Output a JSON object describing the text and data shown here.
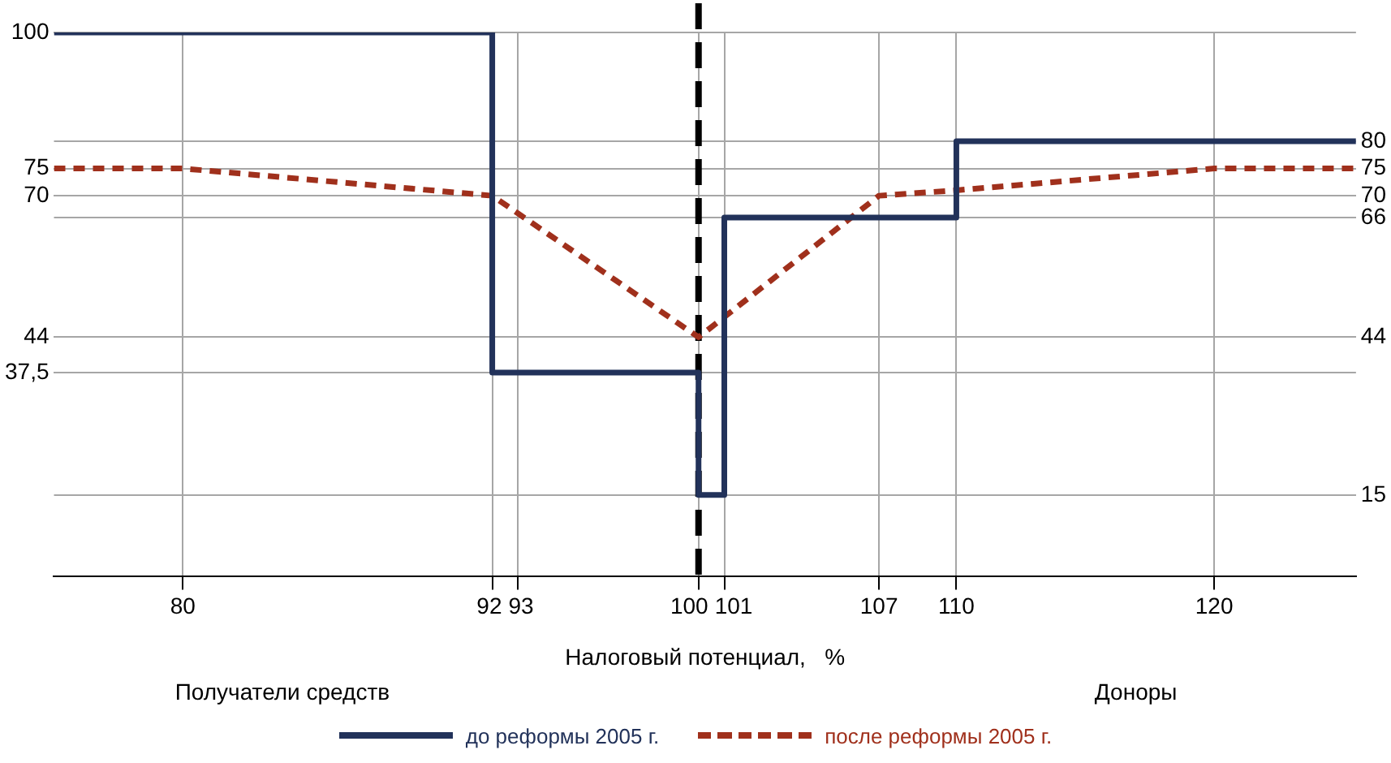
{
  "chart_data": {
    "type": "line",
    "xlabel": "Налоговый потенциал,   %",
    "xlim": [
      75,
      125.5
    ],
    "xticks": [
      80,
      92,
      93,
      100,
      101,
      107,
      110,
      120
    ],
    "ylim": [
      0,
      100
    ],
    "yticks": [
      100,
      75,
      70,
      44,
      {
        "value": 37.5,
        "label": "37,5"
      }
    ],
    "y2lim": [
      0,
      100
    ],
    "y2ticks": [
      80,
      75,
      70,
      66,
      44,
      15
    ],
    "grid": true,
    "legend": "bottom",
    "series": [
      {
        "name": "до реформы 2005 г.",
        "color": "#22325a",
        "x": [
          75,
          92,
          92,
          100,
          100,
          101,
          101,
          110,
          110,
          125.5
        ],
        "values": [
          100,
          100,
          37.5,
          37.5,
          15,
          15,
          66,
          66,
          80,
          80
        ]
      },
      {
        "name": "после реформы 2005 г.",
        "color": "#a0301c",
        "line_style": "dashed",
        "x": [
          75,
          80,
          92,
          100,
          107,
          110,
          120,
          125.5
        ],
        "values": [
          75,
          75,
          70,
          44,
          70,
          71,
          75,
          75
        ]
      }
    ],
    "ref_lines": [
      {
        "axis": "x",
        "value": 100,
        "color": "#000000",
        "line_style": "dashed"
      }
    ],
    "annotations": [
      "Получатели средств",
      "Доноры"
    ]
  }
}
